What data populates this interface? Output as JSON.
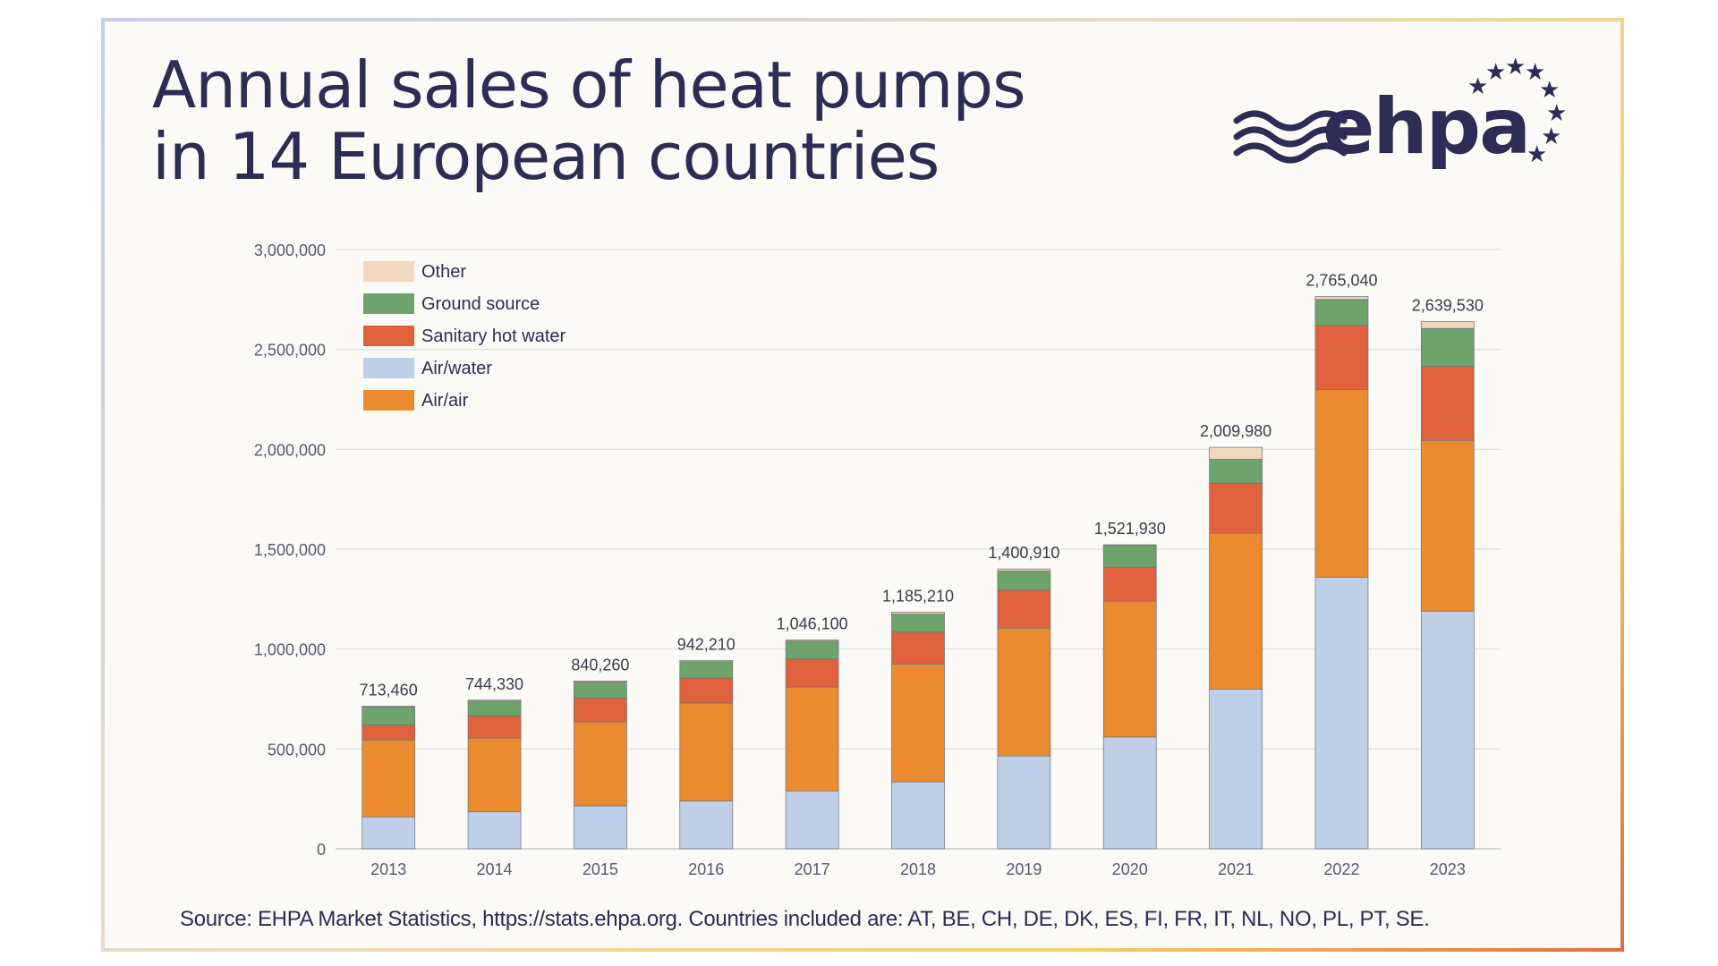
{
  "title_line1": "Annual sales of heat pumps",
  "title_line2": "in 14 European countries",
  "logo": {
    "text": "ehpa",
    "icon": "ehpa-waves-and-stars-logo",
    "color": "#2c2c55"
  },
  "source": "Source: EHPA Market Statistics, https://stats.ehpa.org. Countries included are: AT, BE, CH, DE, DK, ES, FI, FR, IT, NL, NO, PL, PT, SE.",
  "chart_data": {
    "type": "bar",
    "stacked": true,
    "title": "Annual sales of heat pumps in 14 European countries",
    "xlabel": "",
    "ylabel": "",
    "ylim": [
      0,
      3000000
    ],
    "yticks": [
      0,
      500000,
      1000000,
      1500000,
      2000000,
      2500000,
      3000000
    ],
    "ytick_labels": [
      "0",
      "500,000",
      "1,000,000",
      "1,500,000",
      "2,000,000",
      "2,500,000",
      "3,000,000"
    ],
    "grid": true,
    "legend_position": "top-left",
    "categories": [
      "2013",
      "2014",
      "2015",
      "2016",
      "2017",
      "2018",
      "2019",
      "2020",
      "2021",
      "2022",
      "2023"
    ],
    "series": [
      {
        "name": "Air/water",
        "color": "#c0cfe8",
        "values": [
          160000,
          185000,
          215000,
          240000,
          290000,
          335000,
          465000,
          560000,
          800000,
          1360000,
          1190000
        ]
      },
      {
        "name": "Air/air",
        "color": "#e98b2e",
        "values": [
          385000,
          370000,
          420000,
          490000,
          520000,
          590000,
          640000,
          680000,
          780000,
          940000,
          855000
        ]
      },
      {
        "name": "Sanitary hot water",
        "color": "#e0623c",
        "values": [
          75000,
          110000,
          120000,
          125000,
          140000,
          160000,
          190000,
          170000,
          250000,
          320000,
          370000
        ]
      },
      {
        "name": "Ground source",
        "color": "#6ea36b",
        "values": [
          90000,
          75000,
          80000,
          82000,
          90000,
          90000,
          95000,
          110000,
          120000,
          130000,
          190000
        ]
      },
      {
        "name": "Other",
        "color": "#efd8bd",
        "values": [
          3460,
          4330,
          5260,
          5210,
          6100,
          10210,
          10910,
          1930,
          59980,
          15040,
          34530
        ]
      }
    ],
    "totals": [
      713460,
      744330,
      840260,
      942210,
      1046100,
      1185210,
      1400910,
      1521930,
      2009980,
      2765040,
      2639530
    ],
    "total_labels": [
      "713,460",
      "744,330",
      "840,260",
      "942,210",
      "1,046,100",
      "1,185,210",
      "1,400,910",
      "1,521,930",
      "2,009,980",
      "2,765,040",
      "2,639,530"
    ],
    "legend_order": [
      "Other",
      "Ground source",
      "Sanitary hot water",
      "Air/water",
      "Air/air"
    ]
  }
}
